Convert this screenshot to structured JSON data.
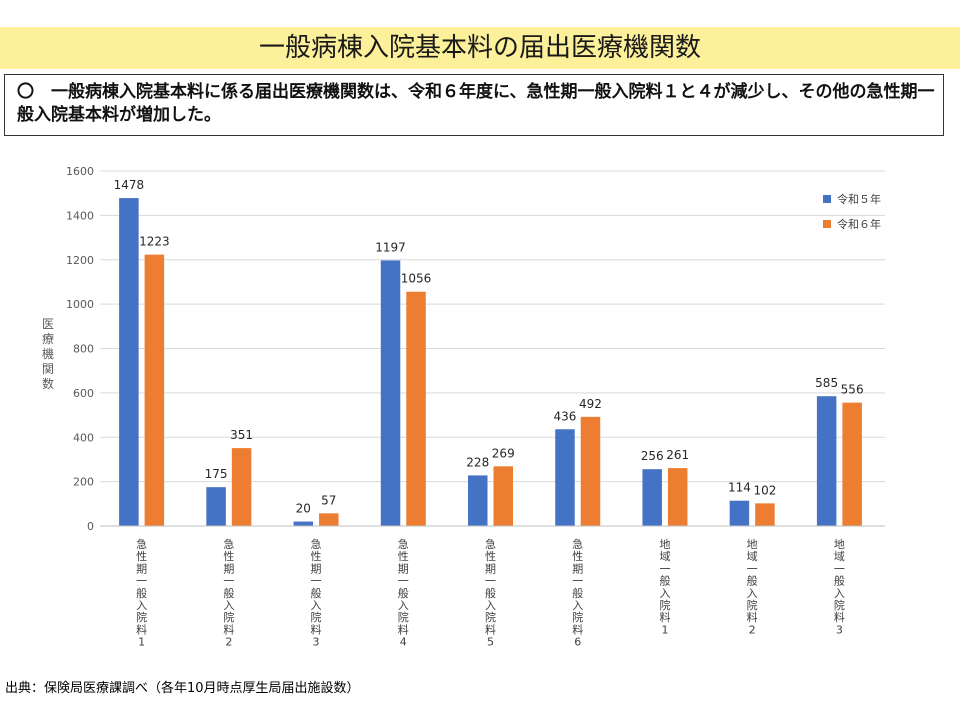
{
  "header": {
    "title": "一般病棟入院基本料の届出医療機関数"
  },
  "summary": {
    "text": "〇　一般病棟入院基本料に係る届出医療機関数は、令和６年度に、急性期一般入院料１と４が減少し、その他の急性期一般入院基本料が増加した。"
  },
  "chart_data": {
    "type": "bar",
    "categories": [
      "急性期一般入院料1",
      "急性期一般入院料2",
      "急性期一般入院料3",
      "急性期一般入院料4",
      "急性期一般入院料5",
      "急性期一般入院料6",
      "地域一般入院料1",
      "地域一般入院料2",
      "地域一般入院料3"
    ],
    "series": [
      {
        "name": "令和５年",
        "color": "#4472c4",
        "values": [
          1478,
          175,
          20,
          1197,
          228,
          436,
          256,
          114,
          585
        ]
      },
      {
        "name": "令和６年",
        "color": "#ed7d31",
        "values": [
          1223,
          351,
          57,
          1056,
          269,
          492,
          261,
          102,
          556
        ]
      }
    ],
    "ylabel": "医療機関数",
    "ylim": [
      0,
      1600
    ],
    "yticks": [
      0,
      200,
      400,
      600,
      800,
      1000,
      1200,
      1400,
      1600
    ],
    "grid": true,
    "legend": "top-right",
    "data_labels": true
  },
  "footer": {
    "source": "出典：保険局医療課調べ（各年10月時点厚生局届出施設数）"
  }
}
